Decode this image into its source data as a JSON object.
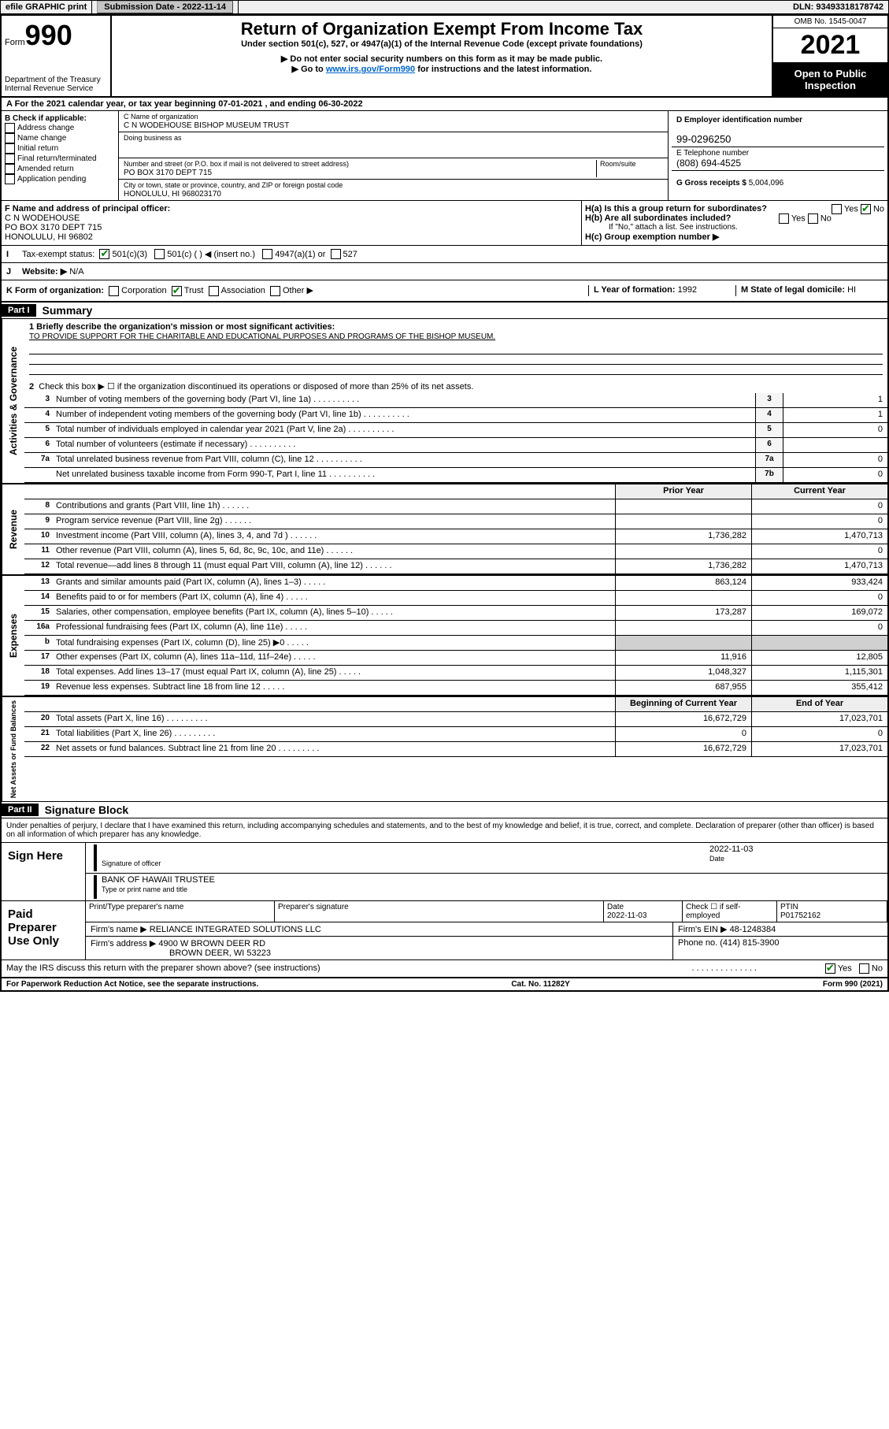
{
  "topbar": {
    "efile": "efile GRAPHIC print",
    "submission_label": "Submission Date - 2022-11-14",
    "dln_label": "DLN: 93493318178742"
  },
  "header": {
    "form_word": "Form",
    "form_num": "990",
    "dept": "Department of the Treasury",
    "irs": "Internal Revenue Service",
    "title": "Return of Organization Exempt From Income Tax",
    "subtitle": "Under section 501(c), 527, or 4947(a)(1) of the Internal Revenue Code (except private foundations)",
    "note1": "▶ Do not enter social security numbers on this form as it may be made public.",
    "note2_pre": "▶ Go to ",
    "note2_link": "www.irs.gov/Form990",
    "note2_post": " for instructions and the latest information.",
    "omb": "OMB No. 1545-0047",
    "year": "2021",
    "open": "Open to Public Inspection"
  },
  "lineA": "A For the 2021 calendar year, or tax year beginning 07-01-2021  , and ending 06-30-2022",
  "boxB": {
    "label": "B Check if applicable:",
    "items": [
      "Address change",
      "Name change",
      "Initial return",
      "Final return/terminated",
      "Amended return",
      "Application pending"
    ]
  },
  "boxC": {
    "name_label": "C Name of organization",
    "name": "C N WODEHOUSE BISHOP MUSEUM TRUST",
    "dba_label": "Doing business as",
    "dba": "",
    "street_label": "Number and street (or P.O. box if mail is not delivered to street address)",
    "room_label": "Room/suite",
    "street": "PO BOX 3170 DEPT 715",
    "city_label": "City or town, state or province, country, and ZIP or foreign postal code",
    "city": "HONOLULU, HI  968023170"
  },
  "boxD": {
    "label": "D Employer identification number",
    "value": "99-0296250"
  },
  "boxE": {
    "label": "E Telephone number",
    "value": "(808) 694-4525"
  },
  "boxG": {
    "label": "G Gross receipts $",
    "value": "5,004,096"
  },
  "boxF": {
    "label": "F Name and address of principal officer:",
    "name": "C N WODEHOUSE",
    "addr1": "PO BOX 3170 DEPT 715",
    "addr2": "HONOLULU, HI  96802"
  },
  "boxH": {
    "ha_label": "H(a)  Is this a group return for subordinates?",
    "ha_yes": "Yes",
    "ha_no": "No",
    "hb_label": "H(b)  Are all subordinates included?",
    "hb_yes": "Yes",
    "hb_no": "No",
    "hb_note": "If \"No,\" attach a list. See instructions.",
    "hc_label": "H(c)  Group exemption number ▶"
  },
  "lineI": {
    "label": "Tax-exempt status:",
    "opts": [
      "501(c)(3)",
      "501(c) (  ) ◀ (insert no.)",
      "4947(a)(1) or",
      "527"
    ]
  },
  "lineJ": {
    "label": "Website: ▶",
    "value": "N/A"
  },
  "lineK": {
    "label": "K Form of organization:",
    "opts": [
      "Corporation",
      "Trust",
      "Association",
      "Other ▶"
    ]
  },
  "lineL": {
    "label": "L Year of formation:",
    "value": "1992"
  },
  "lineM": {
    "label": "M State of legal domicile:",
    "value": "HI"
  },
  "part1": {
    "num": "Part I",
    "title": "Summary",
    "q1_label": "1  Briefly describe the organization's mission or most significant activities:",
    "q1_text": "TO PROVIDE SUPPORT FOR THE CHARITABLE AND EDUCATIONAL PURPOSES AND PROGRAMS OF THE BISHOP MUSEUM.",
    "q2": "Check this box ▶ ☐  if the organization discontinued its operations or disposed of more than 25% of its net assets.",
    "lines_gov": [
      {
        "n": "3",
        "d": "Number of voting members of the governing body (Part VI, line 1a)",
        "box": "3",
        "v": "1"
      },
      {
        "n": "4",
        "d": "Number of independent voting members of the governing body (Part VI, line 1b)",
        "box": "4",
        "v": "1"
      },
      {
        "n": "5",
        "d": "Total number of individuals employed in calendar year 2021 (Part V, line 2a)",
        "box": "5",
        "v": "0"
      },
      {
        "n": "6",
        "d": "Total number of volunteers (estimate if necessary)",
        "box": "6",
        "v": ""
      },
      {
        "n": "7a",
        "d": "Total unrelated business revenue from Part VIII, column (C), line 12",
        "box": "7a",
        "v": "0"
      },
      {
        "n": "",
        "d": "Net unrelated business taxable income from Form 990-T, Part I, line 11",
        "box": "7b",
        "v": "0"
      }
    ],
    "col_prior": "Prior Year",
    "col_curr": "Current Year",
    "revenue": [
      {
        "n": "8",
        "d": "Contributions and grants (Part VIII, line 1h)",
        "p": "",
        "c": "0"
      },
      {
        "n": "9",
        "d": "Program service revenue (Part VIII, line 2g)",
        "p": "",
        "c": "0"
      },
      {
        "n": "10",
        "d": "Investment income (Part VIII, column (A), lines 3, 4, and 7d )",
        "p": "1,736,282",
        "c": "1,470,713"
      },
      {
        "n": "11",
        "d": "Other revenue (Part VIII, column (A), lines 5, 6d, 8c, 9c, 10c, and 11e)",
        "p": "",
        "c": "0"
      },
      {
        "n": "12",
        "d": "Total revenue—add lines 8 through 11 (must equal Part VIII, column (A), line 12)",
        "p": "1,736,282",
        "c": "1,470,713"
      }
    ],
    "expenses": [
      {
        "n": "13",
        "d": "Grants and similar amounts paid (Part IX, column (A), lines 1–3)",
        "p": "863,124",
        "c": "933,424"
      },
      {
        "n": "14",
        "d": "Benefits paid to or for members (Part IX, column (A), line 4)",
        "p": "",
        "c": "0"
      },
      {
        "n": "15",
        "d": "Salaries, other compensation, employee benefits (Part IX, column (A), lines 5–10)",
        "p": "173,287",
        "c": "169,072"
      },
      {
        "n": "16a",
        "d": "Professional fundraising fees (Part IX, column (A), line 11e)",
        "p": "",
        "c": "0"
      },
      {
        "n": "b",
        "d": "Total fundraising expenses (Part IX, column (D), line 25) ▶0",
        "p": "shade",
        "c": "shade"
      },
      {
        "n": "17",
        "d": "Other expenses (Part IX, column (A), lines 11a–11d, 11f–24e)",
        "p": "11,916",
        "c": "12,805"
      },
      {
        "n": "18",
        "d": "Total expenses. Add lines 13–17 (must equal Part IX, column (A), line 25)",
        "p": "1,048,327",
        "c": "1,115,301"
      },
      {
        "n": "19",
        "d": "Revenue less expenses. Subtract line 18 from line 12",
        "p": "687,955",
        "c": "355,412"
      }
    ],
    "col_begin": "Beginning of Current Year",
    "col_end": "End of Year",
    "netassets": [
      {
        "n": "20",
        "d": "Total assets (Part X, line 16)",
        "p": "16,672,729",
        "c": "17,023,701"
      },
      {
        "n": "21",
        "d": "Total liabilities (Part X, line 26)",
        "p": "0",
        "c": "0"
      },
      {
        "n": "22",
        "d": "Net assets or fund balances. Subtract line 21 from line 20",
        "p": "16,672,729",
        "c": "17,023,701"
      }
    ],
    "side1": "Activities & Governance",
    "side2": "Revenue",
    "side3": "Expenses",
    "side4": "Net Assets or Fund Balances"
  },
  "part2": {
    "num": "Part II",
    "title": "Signature Block",
    "decl": "Under penalties of perjury, I declare that I have examined this return, including accompanying schedules and statements, and to the best of my knowledge and belief, it is true, correct, and complete. Declaration of preparer (other than officer) is based on all information of which preparer has any knowledge.",
    "sign_here": "Sign Here",
    "sig_officer": "Signature of officer",
    "sig_date_label": "Date",
    "sig_date": "2022-11-03",
    "sig_name": "BANK OF HAWAII TRUSTEE",
    "sig_name_label": "Type or print name and title",
    "paid": "Paid Preparer Use Only",
    "prep_name_label": "Print/Type preparer's name",
    "prep_sig_label": "Preparer's signature",
    "prep_date_label": "Date",
    "prep_date": "2022-11-03",
    "prep_check": "Check ☐ if self-employed",
    "ptin_label": "PTIN",
    "ptin": "P01752162",
    "firm_name_label": "Firm's name    ▶",
    "firm_name": "RELIANCE INTEGRATED SOLUTIONS LLC",
    "firm_ein_label": "Firm's EIN ▶",
    "firm_ein": "48-1248384",
    "firm_addr_label": "Firm's address ▶",
    "firm_addr1": "4900 W BROWN DEER RD",
    "firm_addr2": "BROWN DEER, WI  53223",
    "phone_label": "Phone no.",
    "phone": "(414) 815-3900",
    "may_irs": "May the IRS discuss this return with the preparer shown above? (see instructions)",
    "may_yes": "Yes",
    "may_no": "No"
  },
  "footer": {
    "left": "For Paperwork Reduction Act Notice, see the separate instructions.",
    "mid": "Cat. No. 11282Y",
    "right": "Form 990 (2021)"
  }
}
